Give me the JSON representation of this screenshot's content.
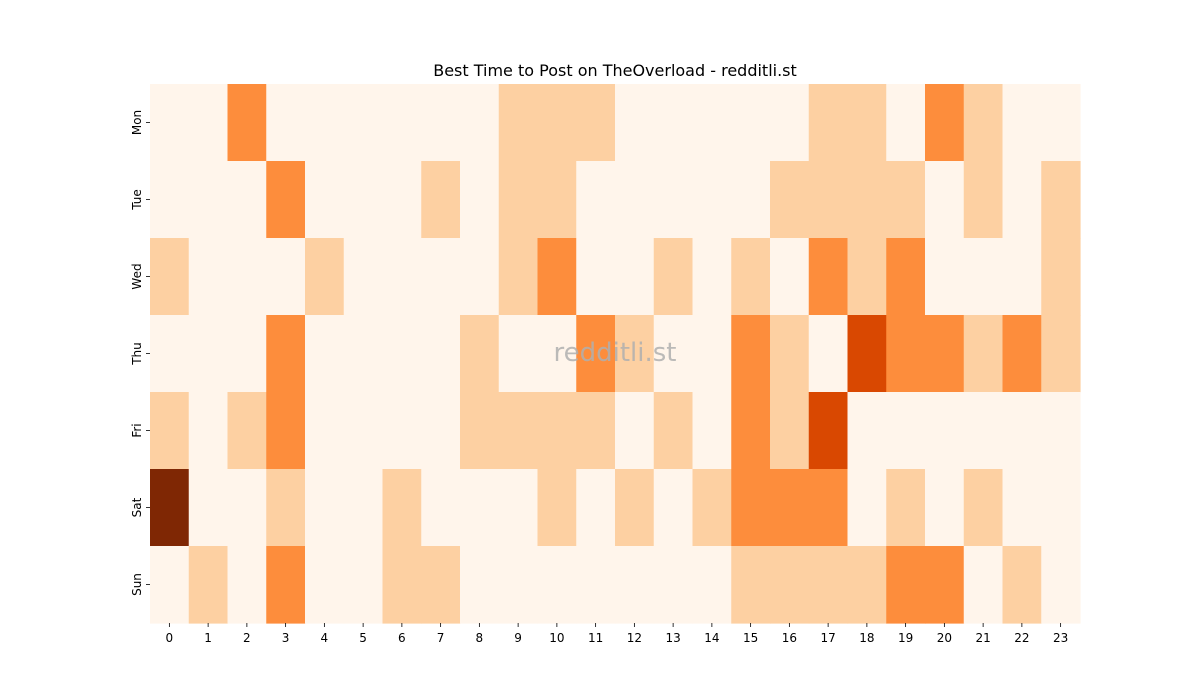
{
  "chart_data": {
    "type": "heatmap",
    "title": "Best Time to Post on TheOverload - redditli.st",
    "xlabel": "",
    "ylabel": "",
    "watermark": "redditli.st",
    "x_categories": [
      "0",
      "1",
      "2",
      "3",
      "4",
      "5",
      "6",
      "7",
      "8",
      "9",
      "10",
      "11",
      "12",
      "13",
      "14",
      "15",
      "16",
      "17",
      "18",
      "19",
      "20",
      "21",
      "22",
      "23"
    ],
    "y_categories": [
      "Mon",
      "Tue",
      "Wed",
      "Thu",
      "Fri",
      "Sat",
      "Sun"
    ],
    "colormap": "Oranges",
    "value_range": [
      0,
      4
    ],
    "color_levels": [
      "#fff5eb",
      "#fdd0a2",
      "#fd8d3c",
      "#d94801",
      "#7f2704"
    ],
    "values": [
      [
        0,
        0,
        2,
        0,
        0,
        0,
        0,
        0,
        0,
        1,
        1,
        1,
        0,
        0,
        0,
        0,
        0,
        1,
        1,
        0,
        2,
        1,
        0,
        0
      ],
      [
        0,
        0,
        0,
        2,
        0,
        0,
        0,
        1,
        0,
        1,
        1,
        0,
        0,
        0,
        0,
        0,
        1,
        1,
        1,
        1,
        0,
        1,
        0,
        1
      ],
      [
        1,
        0,
        0,
        0,
        1,
        0,
        0,
        0,
        0,
        1,
        2,
        0,
        0,
        1,
        0,
        1,
        0,
        2,
        1,
        2,
        0,
        0,
        0,
        1
      ],
      [
        0,
        0,
        0,
        2,
        0,
        0,
        0,
        0,
        1,
        0,
        0,
        2,
        1,
        0,
        0,
        2,
        1,
        0,
        3,
        2,
        2,
        1,
        2,
        1
      ],
      [
        1,
        0,
        1,
        2,
        0,
        0,
        0,
        0,
        1,
        1,
        1,
        1,
        0,
        1,
        0,
        2,
        1,
        3,
        0,
        0,
        0,
        0,
        0,
        0
      ],
      [
        4,
        0,
        0,
        1,
        0,
        0,
        1,
        0,
        0,
        0,
        1,
        0,
        1,
        0,
        1,
        2,
        2,
        2,
        0,
        1,
        0,
        1,
        0,
        0
      ],
      [
        0,
        1,
        0,
        2,
        0,
        0,
        1,
        1,
        0,
        0,
        0,
        0,
        0,
        0,
        0,
        1,
        1,
        1,
        1,
        2,
        2,
        0,
        1,
        0
      ]
    ]
  }
}
